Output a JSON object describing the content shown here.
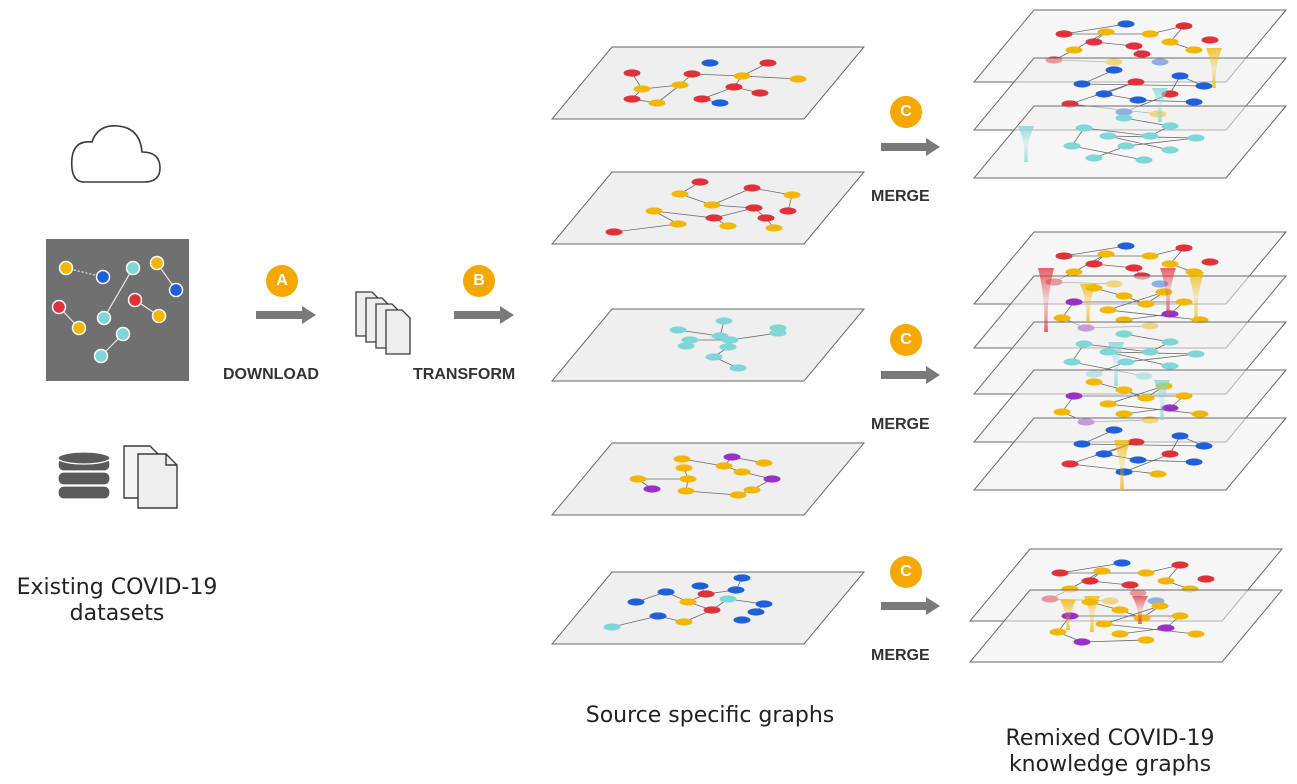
{
  "colors": {
    "accent": "#F5A800",
    "arrow": "#7a7a78",
    "node_red": "#E0303A",
    "node_yellow": "#F2B705",
    "node_blue": "#1F5FD8",
    "node_cyan": "#7FD6D6",
    "node_purple": "#9B30C8",
    "dataset_panel": "#707070",
    "plane_fill": "#efefef"
  },
  "icons": {
    "cloud": "cloud-icon",
    "network_panel": "network-graph-icon",
    "database": "database-icon",
    "documents": "documents-icon",
    "file_stack": "file-stack-icon"
  },
  "steps": {
    "download": {
      "badge": "A",
      "label": "DOWNLOAD"
    },
    "transform": {
      "badge": "B",
      "label": "TRANSFORM"
    },
    "merges": [
      {
        "badge": "C",
        "label": "MERGE"
      },
      {
        "badge": "C",
        "label": "MERGE"
      },
      {
        "badge": "C",
        "label": "MERGE"
      }
    ]
  },
  "captions": {
    "datasets": [
      "Existing COVID-19",
      "datasets"
    ],
    "source": "Source specific graphs",
    "remixed": [
      "Remixed COVID-19",
      "knowledge graphs"
    ]
  }
}
